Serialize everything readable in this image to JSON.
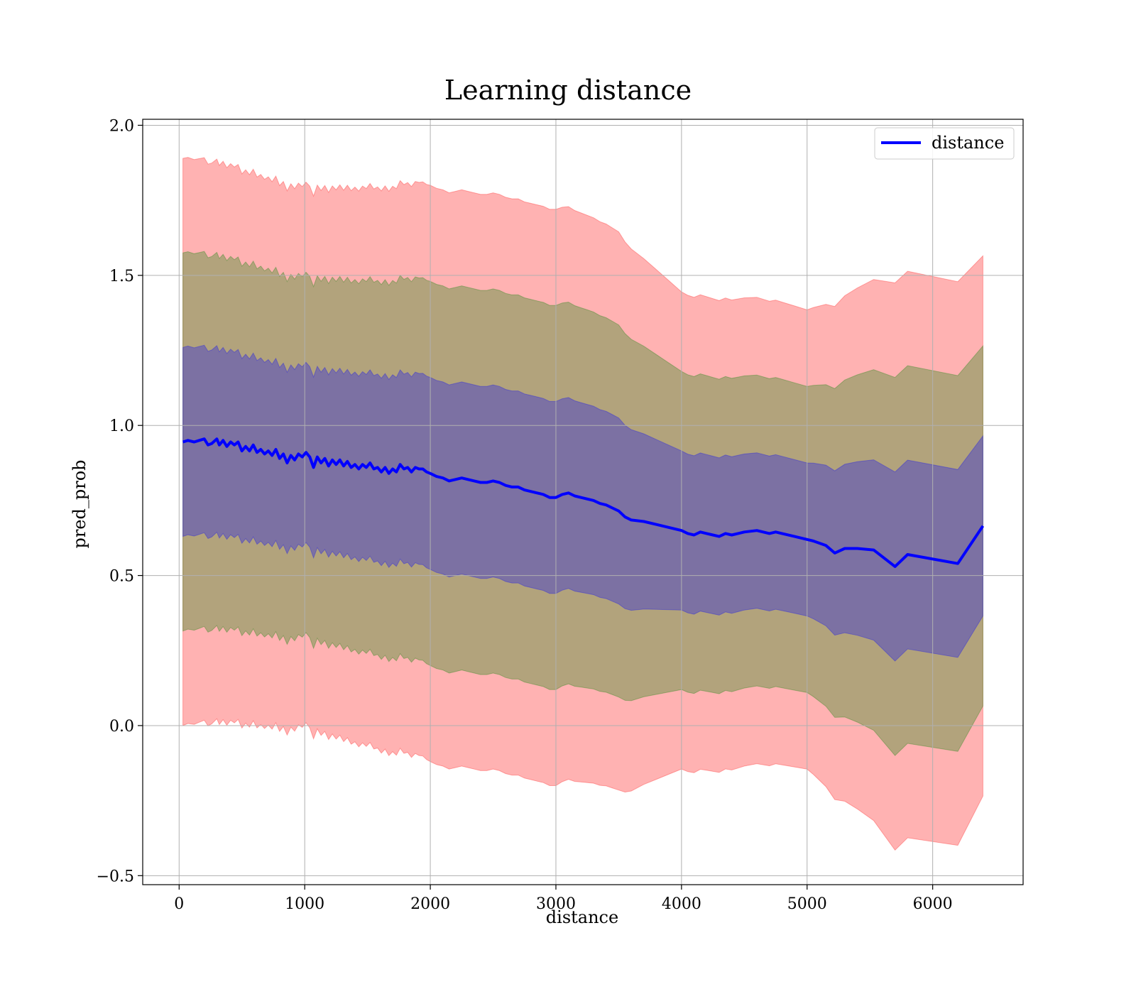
{
  "chart_data": {
    "type": "line",
    "title": "Learning distance",
    "xlabel": "distance",
    "ylabel": "pred_prob",
    "xlim": [
      -290,
      6720
    ],
    "ylim": [
      -0.53,
      2.02
    ],
    "xticks": [
      0,
      1000,
      2000,
      3000,
      4000,
      5000,
      6000
    ],
    "xtick_labels": [
      "0",
      "1000",
      "2000",
      "3000",
      "4000",
      "5000",
      "6000"
    ],
    "yticks": [
      -0.5,
      0.0,
      0.5,
      1.0,
      1.5,
      2.0
    ],
    "ytick_labels": [
      "−0.5",
      "0.0",
      "0.5",
      "1.0",
      "1.5",
      "2.0"
    ],
    "grid": true,
    "legend": {
      "position": "top-right",
      "entries": [
        {
          "label": "distance",
          "color": "#0000ff"
        }
      ]
    },
    "bands": [
      {
        "sigma": 3,
        "fill": "#ff0000",
        "opacity": 0.3
      },
      {
        "sigma": 2,
        "fill": "#008000",
        "opacity": 0.3
      },
      {
        "sigma": 1,
        "fill": "#0000ff",
        "opacity": 0.3
      }
    ],
    "band_sigma_spacing": [
      {
        "x": 30,
        "s": 0.315
      },
      {
        "x": 1000,
        "s": 0.3
      },
      {
        "x": 2000,
        "s": 0.32
      },
      {
        "x": 3000,
        "s": 0.32
      },
      {
        "x": 3500,
        "s": 0.31
      },
      {
        "x": 4000,
        "s": 0.265
      },
      {
        "x": 5000,
        "s": 0.255
      },
      {
        "x": 5700,
        "s": 0.315
      },
      {
        "x": 6200,
        "s": 0.313
      },
      {
        "x": 6400,
        "s": 0.3
      }
    ],
    "series": [
      {
        "name": "distance",
        "color": "#0000ff",
        "x": [
          30,
          70,
          120,
          160,
          200,
          230,
          260,
          300,
          320,
          350,
          380,
          410,
          440,
          470,
          500,
          530,
          560,
          590,
          620,
          650,
          680,
          710,
          740,
          770,
          800,
          830,
          860,
          890,
          920,
          950,
          980,
          1010,
          1040,
          1070,
          1100,
          1130,
          1160,
          1190,
          1220,
          1250,
          1280,
          1310,
          1340,
          1370,
          1400,
          1430,
          1460,
          1490,
          1520,
          1550,
          1580,
          1610,
          1640,
          1670,
          1700,
          1730,
          1760,
          1790,
          1820,
          1850,
          1880,
          1910,
          1940,
          1970,
          2000,
          2050,
          2100,
          2150,
          2200,
          2250,
          2300,
          2350,
          2400,
          2450,
          2500,
          2550,
          2600,
          2650,
          2700,
          2750,
          2800,
          2850,
          2900,
          2950,
          3000,
          3050,
          3100,
          3150,
          3200,
          3250,
          3300,
          3350,
          3400,
          3450,
          3500,
          3550,
          3600,
          3700,
          3800,
          3900,
          4000,
          4050,
          4100,
          4150,
          4200,
          4250,
          4300,
          4350,
          4400,
          4450,
          4500,
          4600,
          4700,
          4750,
          4800,
          4900,
          5000,
          5050,
          5150,
          5220,
          5300,
          5400,
          5530,
          5700,
          5800,
          6200,
          6400
        ],
        "y": [
          0.945,
          0.95,
          0.945,
          0.95,
          0.955,
          0.935,
          0.94,
          0.955,
          0.935,
          0.95,
          0.93,
          0.945,
          0.935,
          0.945,
          0.915,
          0.93,
          0.915,
          0.935,
          0.91,
          0.92,
          0.905,
          0.915,
          0.9,
          0.92,
          0.89,
          0.905,
          0.875,
          0.9,
          0.885,
          0.905,
          0.895,
          0.91,
          0.895,
          0.86,
          0.895,
          0.875,
          0.89,
          0.865,
          0.885,
          0.87,
          0.885,
          0.865,
          0.88,
          0.86,
          0.87,
          0.855,
          0.87,
          0.86,
          0.875,
          0.855,
          0.86,
          0.845,
          0.86,
          0.84,
          0.855,
          0.845,
          0.87,
          0.855,
          0.86,
          0.845,
          0.86,
          0.855,
          0.855,
          0.845,
          0.84,
          0.83,
          0.825,
          0.815,
          0.82,
          0.825,
          0.82,
          0.815,
          0.81,
          0.81,
          0.815,
          0.81,
          0.8,
          0.795,
          0.795,
          0.785,
          0.78,
          0.775,
          0.77,
          0.76,
          0.76,
          0.77,
          0.775,
          0.765,
          0.76,
          0.755,
          0.75,
          0.74,
          0.735,
          0.725,
          0.715,
          0.695,
          0.685,
          0.68,
          0.67,
          0.66,
          0.65,
          0.64,
          0.635,
          0.645,
          0.64,
          0.635,
          0.63,
          0.64,
          0.635,
          0.64,
          0.645,
          0.65,
          0.64,
          0.645,
          0.64,
          0.63,
          0.62,
          0.615,
          0.6,
          0.575,
          0.59,
          0.59,
          0.585,
          0.53,
          0.57,
          0.54,
          0.665
        ]
      }
    ]
  }
}
